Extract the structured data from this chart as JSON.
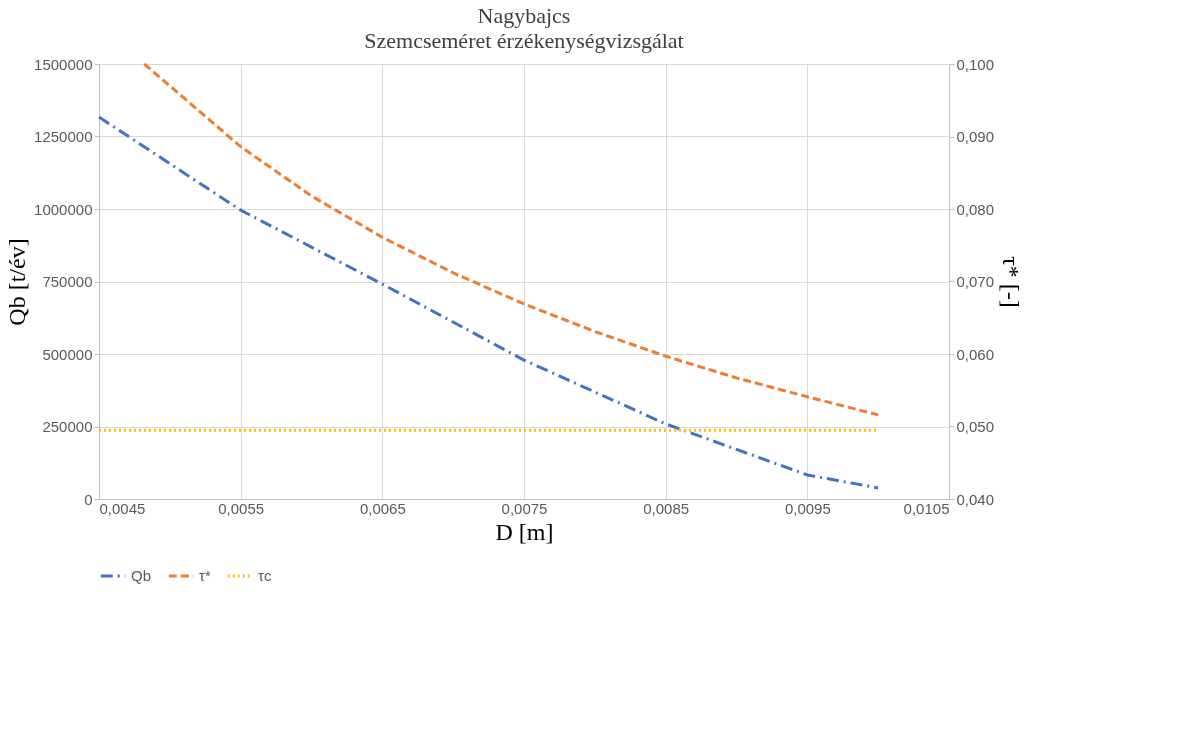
{
  "chart_data": {
    "type": "line",
    "title": "Nagybajcs",
    "subtitle": "Szemcseméret érzékenységvizsgálat",
    "xlabel": "D [m]",
    "ylabel": "Qb [t/év]",
    "y2label": "τ* [-]",
    "xlim": [
      0.0045,
      0.0105
    ],
    "xticks": [
      {
        "value": 0.0045,
        "label": "0,0045"
      },
      {
        "value": 0.0055,
        "label": "0,0055"
      },
      {
        "value": 0.0065,
        "label": "0,0065"
      },
      {
        "value": 0.0075,
        "label": "0,0075"
      },
      {
        "value": 0.0085,
        "label": "0,0085"
      },
      {
        "value": 0.0095,
        "label": "0,0095"
      },
      {
        "value": 0.0105,
        "label": "0,0105"
      }
    ],
    "ylim": [
      0,
      1500000
    ],
    "yticks": [
      0,
      250000,
      500000,
      750000,
      1000000,
      1250000,
      1500000
    ],
    "y2lim": [
      0.04,
      0.1
    ],
    "y2ticks": [
      {
        "value": 0.04,
        "label": "0,040"
      },
      {
        "value": 0.05,
        "label": "0,050"
      },
      {
        "value": 0.06,
        "label": "0,060"
      },
      {
        "value": 0.07,
        "label": "0,070"
      },
      {
        "value": 0.08,
        "label": "0,080"
      },
      {
        "value": 0.09,
        "label": "0,090"
      },
      {
        "value": 0.1,
        "label": "0,100"
      }
    ],
    "grid": true,
    "legend": "bottom",
    "series": [
      {
        "name": "Qb",
        "color": "#4472c4",
        "line_style": "dashdot",
        "x": [
          0.0045,
          0.0055,
          0.0065,
          0.0075,
          0.0085,
          0.0095,
          0.01
        ],
        "values": [
          1317000,
          996000,
          741000,
          479000,
          259000,
          83000,
          38000
        ]
      },
      {
        "name": "τ*",
        "color": "#ed7d31",
        "line_style": "dashed",
        "axis": "y2",
        "x": [
          0.00482,
          0.0055,
          0.006,
          0.0065,
          0.007,
          0.0075,
          0.008,
          0.0085,
          0.009,
          0.0095,
          0.01
        ],
        "values": [
          0.1,
          0.0886,
          0.0818,
          0.0761,
          0.0712,
          0.0669,
          0.0631,
          0.0597,
          0.0567,
          0.0541,
          0.0516
        ]
      },
      {
        "name": "τc",
        "color": "#ffc000",
        "line_style": "dotted",
        "axis": "y2",
        "x": [
          0.0045,
          0.01
        ],
        "values": [
          0.0495,
          0.0495
        ]
      }
    ]
  }
}
